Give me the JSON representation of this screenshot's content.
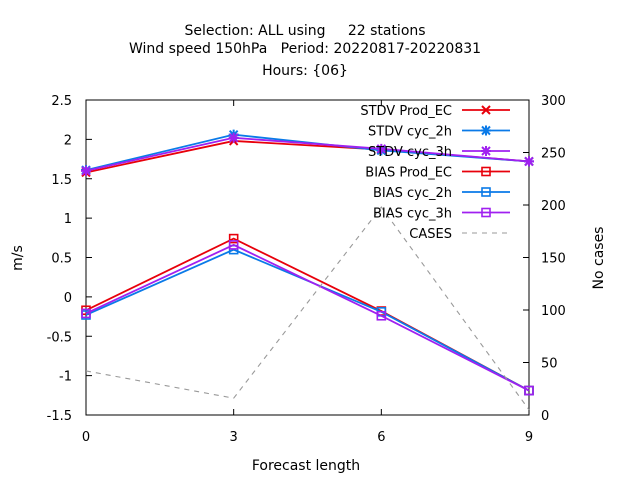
{
  "chart_data": {
    "type": "line",
    "title_lines": [
      "Selection: ALL using     22 stations",
      "Wind speed 150hPa   Period: 20220817-20220831",
      "Hours: {06}"
    ],
    "xlabel": "Forecast length",
    "ylabel": "m/s",
    "y2label": "No cases",
    "x": [
      0,
      3,
      6,
      9
    ],
    "xlim": [
      0,
      9
    ],
    "ylim": [
      -1.5,
      2.5
    ],
    "y2lim": [
      0,
      300
    ],
    "xticks": [
      "0",
      "3",
      "6",
      "9"
    ],
    "yticks": [
      "-1.5",
      "-1",
      "-0.5",
      "0",
      "0.5",
      "1",
      "1.5",
      "2",
      "2.5"
    ],
    "y2ticks": [
      "0",
      "50",
      "100",
      "150",
      "200",
      "250",
      "300"
    ],
    "grid": false,
    "legend_position": "top-right",
    "series": [
      {
        "name": "STDV Prod_EC",
        "axis": "y1",
        "color": "#e8000b",
        "marker": "x",
        "values": [
          1.58,
          1.98,
          1.87,
          1.72
        ]
      },
      {
        "name": "STDV cyc_2h",
        "axis": "y1",
        "color": "#0a7ae8",
        "marker": "star",
        "values": [
          1.61,
          2.06,
          1.86,
          1.72
        ]
      },
      {
        "name": "STDV cyc_3h",
        "axis": "y1",
        "color": "#a020f0",
        "marker": "star",
        "values": [
          1.6,
          2.02,
          1.88,
          1.72
        ]
      },
      {
        "name": "BIAS Prod_EC",
        "axis": "y1",
        "color": "#e8000b",
        "marker": "square",
        "values": [
          -0.17,
          0.74,
          -0.18,
          -1.19
        ]
      },
      {
        "name": "BIAS cyc_2h",
        "axis": "y1",
        "color": "#0a7ae8",
        "marker": "square",
        "values": [
          -0.23,
          0.6,
          -0.19,
          -1.19
        ]
      },
      {
        "name": "BIAS cyc_3h",
        "axis": "y1",
        "color": "#a020f0",
        "marker": "square",
        "values": [
          -0.21,
          0.66,
          -0.24,
          -1.19
        ]
      },
      {
        "name": "CASES",
        "axis": "y2",
        "color": "#999999",
        "marker": "none",
        "dashed": true,
        "values": [
          42,
          16,
          198,
          5
        ]
      }
    ]
  }
}
